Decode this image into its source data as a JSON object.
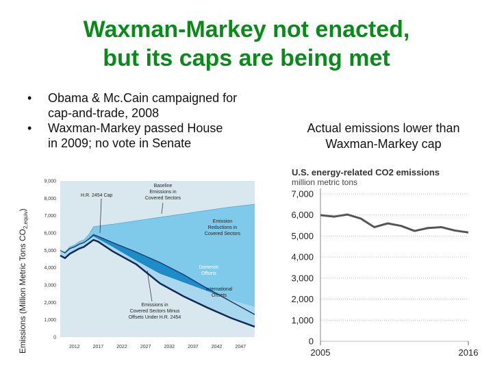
{
  "title": {
    "line1": "Waxman-Markey not enacted,",
    "line2": "but its caps are being met"
  },
  "bullets": [
    {
      "marker": "•",
      "line1": "Obama & Mc.Cain campaigned for",
      "line2": "cap-and-trade, 2008"
    },
    {
      "marker": "•",
      "line1": "Waxman-Markey passed House",
      "line2": "in 2009; no vote in Senate"
    }
  ],
  "right_caption": {
    "line1": "Actual emissions lower than",
    "line2": "Waxman-Markey cap"
  },
  "chart_data": [
    {
      "type": "area",
      "ylabel": "Emissions (Million Metric Tons CO",
      "ylabel_sub": "2,equiv",
      "ylabel_end": ")",
      "yticks": [
        "9,000",
        "8,000",
        "7,000",
        "6,000",
        "5,000",
        "4,000",
        "3,000",
        "2,000",
        "1,000",
        "0"
      ],
      "xticks": [
        "2012",
        "2017",
        "2022",
        "2027",
        "2032",
        "2037",
        "2042",
        "2047"
      ],
      "ylim": [
        0,
        9000
      ],
      "xlim": [
        2009,
        2050
      ],
      "annotations": {
        "cap": "H.R. 2454 Cap",
        "baseline": [
          "Baseline",
          "Emissions in",
          "Covered Sectors"
        ],
        "reductions": [
          "Emission",
          "Reductions in",
          "Covered Sectors"
        ],
        "domestic": [
          "Domestic",
          "Offsets"
        ],
        "international": [
          "International",
          "Offsets"
        ],
        "minus": [
          "Emissions in",
          "Covered Sectors Minus",
          "Offsets Under H.R. 2454"
        ]
      },
      "colors": {
        "background": "#d8e8ee",
        "baseline_area": "#7fcaea",
        "domestic_area": "#1e8cc8",
        "international_area": "#a9d8ee",
        "cap_line": "#1f3f6e",
        "minus_line": "#0f2a55"
      },
      "x": [
        2009,
        2010,
        2011,
        2012,
        2013,
        2014,
        2015,
        2016,
        2017,
        2020,
        2025,
        2030,
        2035,
        2040,
        2045,
        2050
      ],
      "series": [
        {
          "role": "baseline",
          "values": [
            5000,
            4900,
            5200,
            5300,
            5500,
            5600,
            5900,
            6350,
            6400,
            6500,
            6700,
            6900,
            7100,
            7300,
            7500,
            7650
          ]
        },
        {
          "role": "cap",
          "values": [
            5000,
            4850,
            5100,
            5200,
            5350,
            5450,
            5650,
            5900,
            5800,
            5450,
            4900,
            4300,
            3600,
            2800,
            2050,
            1300
          ]
        },
        {
          "role": "domestic_offsets_low",
          "values": [
            5000,
            4850,
            5100,
            5200,
            5350,
            5450,
            5600,
            5800,
            5650,
            5200,
            4400,
            3650,
            3150,
            2650,
            2150,
            1750
          ]
        },
        {
          "role": "minus_offsets",
          "values": [
            4700,
            4550,
            4800,
            4950,
            5100,
            5200,
            5400,
            5600,
            5500,
            4950,
            4200,
            3100,
            2350,
            1700,
            1100,
            600
          ]
        }
      ]
    },
    {
      "type": "line",
      "title": "U.S. energy-related CO2 emissions",
      "subtitle": "million metric tons",
      "yticks": [
        "7,000",
        "6,000",
        "5,000",
        "4,000",
        "3,000",
        "2,000",
        "1,000",
        "0"
      ],
      "xticks": [
        "2005",
        "2016"
      ],
      "ylim": [
        0,
        7000
      ],
      "x": [
        2005,
        2006,
        2007,
        2008,
        2009,
        2010,
        2011,
        2012,
        2013,
        2014,
        2015,
        2016
      ],
      "series": [
        {
          "values": [
            5990,
            5920,
            6020,
            5830,
            5420,
            5600,
            5480,
            5240,
            5380,
            5420,
            5260,
            5170
          ]
        }
      ],
      "line_color": "#555555",
      "grid_color": "#bfbfbf"
    }
  ]
}
